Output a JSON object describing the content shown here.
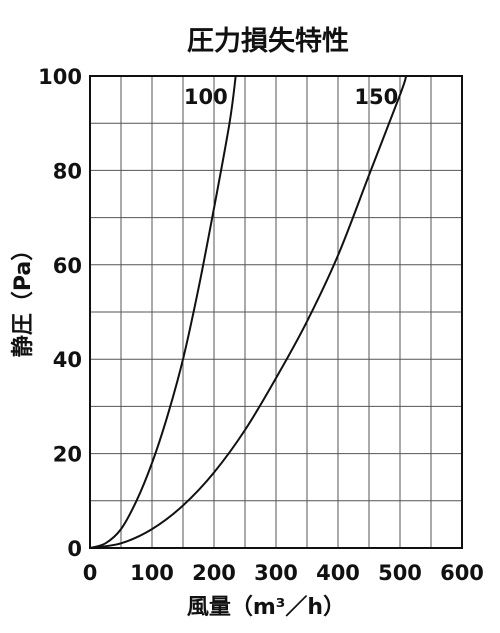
{
  "chart_data": {
    "type": "line",
    "title": "圧力損失特性",
    "xlabel": "風量（m³／h）",
    "ylabel": "静圧（Pa）",
    "xlim": [
      0,
      600
    ],
    "ylim": [
      0,
      100
    ],
    "x_ticks": [
      "0",
      "100",
      "200",
      "300",
      "400",
      "500",
      "600"
    ],
    "y_ticks": [
      "0",
      "20",
      "40",
      "60",
      "80",
      "100"
    ],
    "grid": true,
    "legend": "none",
    "series": [
      {
        "name": "100",
        "x": [
          0,
          25,
          50,
          75,
          100,
          125,
          150,
          175,
          200,
          225,
          235
        ],
        "y": [
          0,
          1,
          4,
          10,
          18,
          28,
          40,
          55,
          72,
          90,
          100
        ]
      },
      {
        "name": "150",
        "x": [
          0,
          50,
          100,
          150,
          200,
          250,
          300,
          350,
          400,
          450,
          500,
          510
        ],
        "y": [
          0,
          1,
          4,
          9,
          16,
          25,
          36,
          48,
          62,
          79,
          96,
          100
        ]
      }
    ]
  }
}
